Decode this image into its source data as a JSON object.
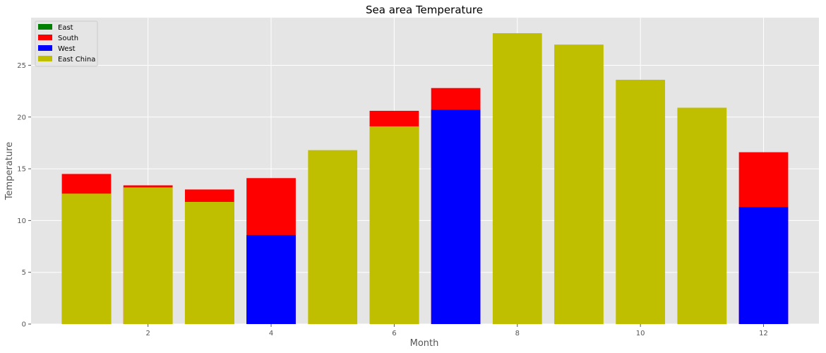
{
  "chart_data": {
    "type": "bar",
    "stacking": "overlaid",
    "title": "Sea area Temperature",
    "xlabel": "Month",
    "ylabel": "Temperature",
    "x": [
      1,
      2,
      3,
      4,
      5,
      6,
      7,
      8,
      9,
      10,
      11,
      12
    ],
    "xticks": [
      2,
      4,
      6,
      8,
      10,
      12
    ],
    "yticks": [
      0,
      5,
      10,
      15,
      20,
      25
    ],
    "xlim": [
      0.1,
      12.9
    ],
    "ylim": [
      0,
      29.6
    ],
    "grid": true,
    "legend_position": "top-left",
    "series": [
      {
        "name": "East",
        "color": "#008000",
        "values": [
          null,
          null,
          null,
          null,
          null,
          null,
          null,
          null,
          null,
          null,
          null,
          null
        ]
      },
      {
        "name": "South",
        "color": "#ff0000",
        "values": [
          14.5,
          13.4,
          13.0,
          14.1,
          null,
          20.6,
          22.8,
          null,
          null,
          null,
          null,
          16.6
        ]
      },
      {
        "name": "West",
        "color": "#0000ff",
        "values": [
          null,
          null,
          null,
          8.6,
          null,
          null,
          20.7,
          null,
          null,
          null,
          null,
          11.3
        ]
      },
      {
        "name": "East China",
        "color": "#bfbf00",
        "values": [
          12.6,
          13.2,
          11.8,
          null,
          16.8,
          19.1,
          null,
          28.1,
          27.0,
          23.6,
          20.9,
          null
        ]
      }
    ]
  }
}
